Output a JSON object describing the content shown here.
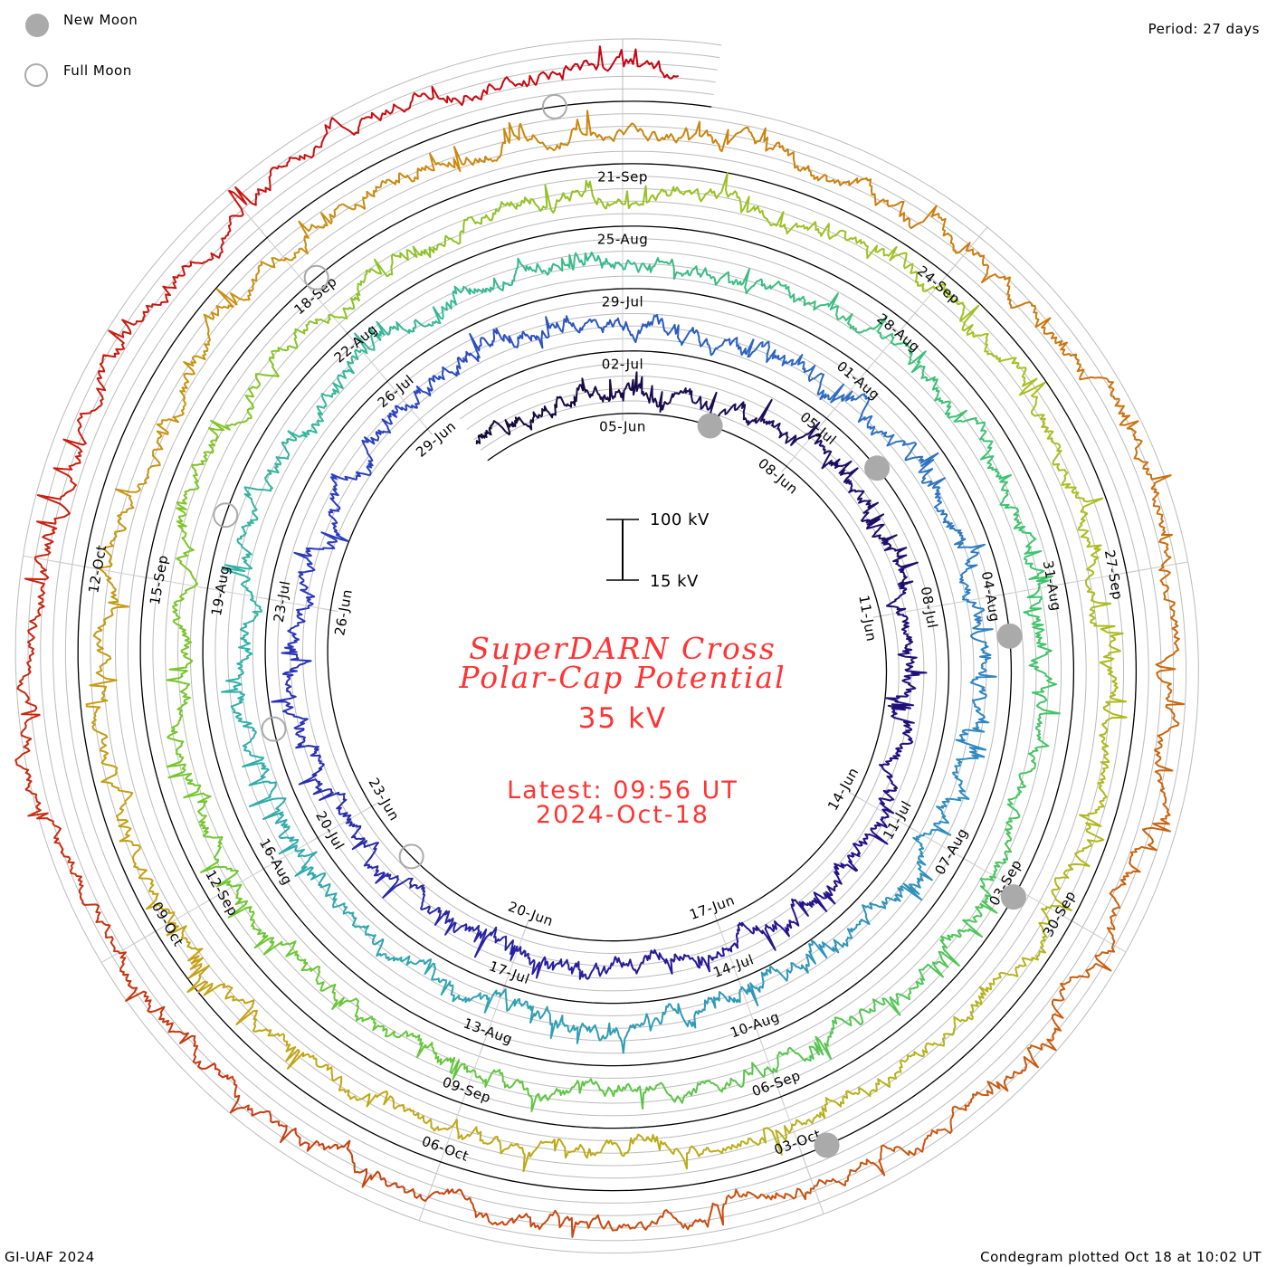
{
  "legend": {
    "new_moon_label": "New Moon",
    "full_moon_label": "Full Moon"
  },
  "period_label": "Period: 27 days",
  "scale": {
    "top_label": "100 kV",
    "bottom_label": "15 kV"
  },
  "title": {
    "line1": "SuperDARN Cross",
    "line2": "Polar-Cap Potential",
    "current_value": "35 kV"
  },
  "latest": {
    "line1": "Latest: 09:56 UT",
    "line2": "2024-Oct-18"
  },
  "footer": {
    "left": "GI-UAF 2024",
    "right": "Condegram plotted Oct 18 at 10:02 UT"
  },
  "colors": {
    "title": "#ff3333",
    "baseline": "#000000",
    "grid": "#bbbbbb",
    "moon": "#aaaaaa",
    "colormap": [
      "#140a38",
      "#24108c",
      "#2a3cc0",
      "#2f8cc0",
      "#2fb2a8",
      "#40c46a",
      "#72c62c",
      "#a8c020",
      "#c4a414",
      "#cc7e0c",
      "#c84410",
      "#c80010"
    ]
  },
  "chart_data": {
    "type": "line",
    "subtype": "condegram-spiral",
    "title": "SuperDARN Cross Polar-Cap Potential",
    "units": "kV",
    "period_days": 27,
    "reference_date": "2024-06-05",
    "data_start": "2024-06-02T11:00Z",
    "data_end": "2024-10-18T09:56Z",
    "baseline_kv": 15,
    "scale_bar_kv": [
      15,
      100
    ],
    "daily_series_start": "2024-06-02",
    "daily_mean_kv": [
      40,
      40,
      40,
      45,
      50,
      40,
      70,
      60,
      55,
      50,
      45,
      55,
      60,
      65,
      55,
      55,
      50,
      50,
      45,
      50,
      45,
      45,
      50,
      60,
      60,
      55,
      50,
      60,
      65,
      55,
      50,
      55,
      50,
      55,
      60,
      65,
      60,
      55,
      50,
      50,
      40,
      35,
      40,
      45,
      45,
      45,
      40,
      45,
      50,
      55,
      50,
      55,
      60,
      65,
      60,
      55,
      55,
      55,
      50,
      55,
      60,
      65,
      60,
      55,
      55,
      60,
      65,
      70,
      60,
      55,
      60,
      55,
      50,
      55,
      60,
      60,
      55,
      55,
      60,
      70,
      65,
      60,
      55,
      55,
      60,
      65,
      70,
      75,
      70,
      65,
      60,
      65,
      70,
      70,
      65,
      60,
      55,
      50,
      55,
      55,
      60,
      65,
      70,
      75,
      65,
      60,
      65,
      70,
      70,
      65,
      60,
      55,
      50,
      60,
      65,
      75,
      80,
      70,
      65,
      60,
      65,
      70,
      60,
      55,
      60,
      65,
      70,
      80,
      75,
      85,
      95,
      80,
      70,
      75,
      70,
      65,
      70,
      60,
      60
    ],
    "date_labels": [
      "05-Jun",
      "08-Jun",
      "11-Jun",
      "14-Jun",
      "17-Jun",
      "20-Jun",
      "23-Jun",
      "26-Jun",
      "29-Jun",
      "02-Jul",
      "05-Jul",
      "08-Jul",
      "11-Jul",
      "14-Jul",
      "17-Jul",
      "20-Jul",
      "23-Jul",
      "26-Jul",
      "29-Jul",
      "01-Aug",
      "04-Aug",
      "07-Aug",
      "10-Aug",
      "13-Aug",
      "16-Aug",
      "19-Aug",
      "22-Aug",
      "25-Aug",
      "28-Aug",
      "31-Aug",
      "03-Sep",
      "06-Sep",
      "09-Sep",
      "12-Sep",
      "15-Sep",
      "18-Sep",
      "21-Sep",
      "24-Sep",
      "27-Sep",
      "30-Sep",
      "03-Oct",
      "06-Oct",
      "09-Oct",
      "12-Oct"
    ],
    "date_label_interval_days": 3,
    "new_moons": [
      "2024-06-06T12:38Z",
      "2024-07-05T22:57Z",
      "2024-08-04T11:13Z",
      "2024-09-03T01:55Z",
      "2024-10-02T18:49Z"
    ],
    "full_moons": [
      "2024-06-22T01:08Z",
      "2024-07-21T10:17Z",
      "2024-08-19T18:26Z",
      "2024-09-18T02:34Z",
      "2024-10-17T11:26Z"
    ]
  }
}
